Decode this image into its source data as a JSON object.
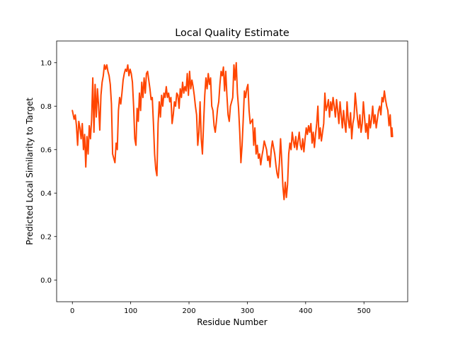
{
  "chart_data": {
    "type": "line",
    "title": "Local Quality Estimate",
    "xlabel": "Residue Number",
    "ylabel": "Predicted Local Similarity to Target",
    "xlim": [
      -27,
      575
    ],
    "ylim": [
      -0.1,
      1.1
    ],
    "x_ticks": [
      0,
      100,
      200,
      300,
      400,
      500
    ],
    "y_ticks": [
      0.0,
      0.2,
      0.4,
      0.6,
      0.8,
      1.0
    ],
    "grid": false,
    "series": [
      {
        "color": "#ff4500",
        "points": [
          [
            0,
            0.78
          ],
          [
            3,
            0.74
          ],
          [
            5,
            0.76
          ],
          [
            7,
            0.71
          ],
          [
            9,
            0.62
          ],
          [
            11,
            0.73
          ],
          [
            13,
            0.7
          ],
          [
            15,
            0.65
          ],
          [
            17,
            0.72
          ],
          [
            19,
            0.6
          ],
          [
            21,
            0.67
          ],
          [
            23,
            0.52
          ],
          [
            25,
            0.66
          ],
          [
            27,
            0.58
          ],
          [
            29,
            0.71
          ],
          [
            31,
            0.65
          ],
          [
            33,
            0.74
          ],
          [
            35,
            0.93
          ],
          [
            37,
            0.68
          ],
          [
            39,
            0.9
          ],
          [
            41,
            0.75
          ],
          [
            43,
            0.88
          ],
          [
            45,
            0.8
          ],
          [
            47,
            0.69
          ],
          [
            49,
            0.85
          ],
          [
            51,
            0.91
          ],
          [
            53,
            0.94
          ],
          [
            55,
            0.99
          ],
          [
            57,
            0.97
          ],
          [
            59,
            0.99
          ],
          [
            61,
            0.96
          ],
          [
            63,
            0.94
          ],
          [
            65,
            0.9
          ],
          [
            67,
            0.81
          ],
          [
            69,
            0.58
          ],
          [
            71,
            0.56
          ],
          [
            73,
            0.54
          ],
          [
            75,
            0.63
          ],
          [
            77,
            0.6
          ],
          [
            79,
            0.78
          ],
          [
            81,
            0.84
          ],
          [
            83,
            0.81
          ],
          [
            85,
            0.86
          ],
          [
            87,
            0.92
          ],
          [
            89,
            0.95
          ],
          [
            91,
            0.97
          ],
          [
            93,
            0.96
          ],
          [
            95,
            0.99
          ],
          [
            97,
            0.94
          ],
          [
            99,
            0.97
          ],
          [
            101,
            0.95
          ],
          [
            103,
            0.91
          ],
          [
            105,
            0.8
          ],
          [
            107,
            0.65
          ],
          [
            109,
            0.62
          ],
          [
            111,
            0.79
          ],
          [
            113,
            0.73
          ],
          [
            115,
            0.86
          ],
          [
            117,
            0.78
          ],
          [
            119,
            0.91
          ],
          [
            121,
            0.84
          ],
          [
            123,
            0.93
          ],
          [
            125,
            0.86
          ],
          [
            127,
            0.95
          ],
          [
            129,
            0.96
          ],
          [
            131,
            0.92
          ],
          [
            133,
            0.88
          ],
          [
            135,
            0.83
          ],
          [
            137,
            0.84
          ],
          [
            139,
            0.72
          ],
          [
            141,
            0.58
          ],
          [
            143,
            0.51
          ],
          [
            145,
            0.48
          ],
          [
            147,
            0.72
          ],
          [
            149,
            0.82
          ],
          [
            151,
            0.75
          ],
          [
            153,
            0.85
          ],
          [
            155,
            0.8
          ],
          [
            157,
            0.86
          ],
          [
            159,
            0.84
          ],
          [
            161,
            0.89
          ],
          [
            163,
            0.84
          ],
          [
            165,
            0.86
          ],
          [
            167,
            0.82
          ],
          [
            169,
            0.84
          ],
          [
            171,
            0.72
          ],
          [
            173,
            0.76
          ],
          [
            175,
            0.82
          ],
          [
            177,
            0.8
          ],
          [
            179,
            0.86
          ],
          [
            181,
            0.85
          ],
          [
            183,
            0.79
          ],
          [
            185,
            0.88
          ],
          [
            187,
            0.84
          ],
          [
            189,
            0.91
          ],
          [
            191,
            0.86
          ],
          [
            193,
            0.89
          ],
          [
            195,
            0.87
          ],
          [
            197,
            0.95
          ],
          [
            199,
            0.85
          ],
          [
            201,
            0.96
          ],
          [
            203,
            0.88
          ],
          [
            205,
            0.92
          ],
          [
            207,
            0.89
          ],
          [
            209,
            0.85
          ],
          [
            211,
            0.8
          ],
          [
            213,
            0.76
          ],
          [
            215,
            0.62
          ],
          [
            217,
            0.68
          ],
          [
            219,
            0.82
          ],
          [
            221,
            0.65
          ],
          [
            223,
            0.58
          ],
          [
            225,
            0.72
          ],
          [
            227,
            0.85
          ],
          [
            229,
            0.93
          ],
          [
            231,
            0.88
          ],
          [
            233,
            0.95
          ],
          [
            235,
            0.9
          ],
          [
            237,
            0.93
          ],
          [
            239,
            0.8
          ],
          [
            241,
            0.78
          ],
          [
            243,
            0.71
          ],
          [
            245,
            0.68
          ],
          [
            247,
            0.73
          ],
          [
            249,
            0.79
          ],
          [
            251,
            0.82
          ],
          [
            253,
            0.9
          ],
          [
            255,
            0.96
          ],
          [
            257,
            0.94
          ],
          [
            259,
            0.98
          ],
          [
            261,
            0.87
          ],
          [
            263,
            0.96
          ],
          [
            265,
            0.85
          ],
          [
            267,
            0.76
          ],
          [
            269,
            0.73
          ],
          [
            271,
            0.8
          ],
          [
            273,
            0.82
          ],
          [
            275,
            0.84
          ],
          [
            277,
            0.99
          ],
          [
            279,
            0.92
          ],
          [
            281,
            1.0
          ],
          [
            283,
            0.86
          ],
          [
            285,
            0.79
          ],
          [
            287,
            0.68
          ],
          [
            289,
            0.54
          ],
          [
            291,
            0.62
          ],
          [
            293,
            0.74
          ],
          [
            295,
            0.87
          ],
          [
            297,
            0.84
          ],
          [
            299,
            0.88
          ],
          [
            301,
            0.9
          ],
          [
            303,
            0.78
          ],
          [
            305,
            0.72
          ],
          [
            307,
            0.73
          ],
          [
            309,
            0.74
          ],
          [
            311,
            0.62
          ],
          [
            313,
            0.7
          ],
          [
            315,
            0.58
          ],
          [
            317,
            0.62
          ],
          [
            319,
            0.56
          ],
          [
            321,
            0.58
          ],
          [
            323,
            0.53
          ],
          [
            325,
            0.57
          ],
          [
            327,
            0.6
          ],
          [
            329,
            0.64
          ],
          [
            331,
            0.62
          ],
          [
            333,
            0.6
          ],
          [
            335,
            0.55
          ],
          [
            337,
            0.57
          ],
          [
            339,
            0.52
          ],
          [
            341,
            0.6
          ],
          [
            343,
            0.64
          ],
          [
            345,
            0.61
          ],
          [
            347,
            0.58
          ],
          [
            349,
            0.53
          ],
          [
            351,
            0.49
          ],
          [
            353,
            0.47
          ],
          [
            355,
            0.54
          ],
          [
            357,
            0.65
          ],
          [
            359,
            0.55
          ],
          [
            361,
            0.43
          ],
          [
            363,
            0.37
          ],
          [
            365,
            0.45
          ],
          [
            367,
            0.38
          ],
          [
            369,
            0.44
          ],
          [
            371,
            0.58
          ],
          [
            373,
            0.63
          ],
          [
            375,
            0.6
          ],
          [
            377,
            0.68
          ],
          [
            379,
            0.64
          ],
          [
            381,
            0.61
          ],
          [
            383,
            0.66
          ],
          [
            385,
            0.6
          ],
          [
            387,
            0.64
          ],
          [
            389,
            0.68
          ],
          [
            391,
            0.62
          ],
          [
            393,
            0.6
          ],
          [
            395,
            0.65
          ],
          [
            397,
            0.59
          ],
          [
            399,
            0.65
          ],
          [
            401,
            0.7
          ],
          [
            403,
            0.67
          ],
          [
            405,
            0.71
          ],
          [
            407,
            0.68
          ],
          [
            409,
            0.72
          ],
          [
            411,
            0.63
          ],
          [
            413,
            0.68
          ],
          [
            415,
            0.61
          ],
          [
            417,
            0.67
          ],
          [
            419,
            0.72
          ],
          [
            421,
            0.8
          ],
          [
            423,
            0.65
          ],
          [
            425,
            0.7
          ],
          [
            427,
            0.64
          ],
          [
            429,
            0.68
          ],
          [
            431,
            0.72
          ],
          [
            433,
            0.86
          ],
          [
            435,
            0.78
          ],
          [
            437,
            0.8
          ],
          [
            439,
            0.83
          ],
          [
            441,
            0.75
          ],
          [
            443,
            0.82
          ],
          [
            445,
            0.78
          ],
          [
            447,
            0.84
          ],
          [
            449,
            0.8
          ],
          [
            451,
            0.75
          ],
          [
            453,
            0.83
          ],
          [
            455,
            0.78
          ],
          [
            457,
            0.72
          ],
          [
            459,
            0.82
          ],
          [
            461,
            0.76
          ],
          [
            463,
            0.7
          ],
          [
            465,
            0.78
          ],
          [
            467,
            0.72
          ],
          [
            469,
            0.68
          ],
          [
            471,
            0.82
          ],
          [
            473,
            0.74
          ],
          [
            475,
            0.7
          ],
          [
            477,
            0.77
          ],
          [
            479,
            0.65
          ],
          [
            481,
            0.72
          ],
          [
            483,
            0.75
          ],
          [
            485,
            0.86
          ],
          [
            487,
            0.8
          ],
          [
            489,
            0.74
          ],
          [
            491,
            0.7
          ],
          [
            493,
            0.76
          ],
          [
            495,
            0.68
          ],
          [
            497,
            0.72
          ],
          [
            499,
            0.82
          ],
          [
            501,
            0.75
          ],
          [
            503,
            0.68
          ],
          [
            505,
            0.72
          ],
          [
            507,
            0.65
          ],
          [
            509,
            0.76
          ],
          [
            511,
            0.7
          ],
          [
            513,
            0.74
          ],
          [
            515,
            0.8
          ],
          [
            517,
            0.72
          ],
          [
            519,
            0.76
          ],
          [
            521,
            0.7
          ],
          [
            523,
            0.74
          ],
          [
            525,
            0.78
          ],
          [
            527,
            0.8
          ],
          [
            529,
            0.76
          ],
          [
            531,
            0.84
          ],
          [
            533,
            0.82
          ],
          [
            535,
            0.87
          ],
          [
            537,
            0.83
          ],
          [
            539,
            0.8
          ],
          [
            541,
            0.78
          ],
          [
            543,
            0.71
          ],
          [
            545,
            0.76
          ],
          [
            547,
            0.66
          ],
          [
            548,
            0.7
          ],
          [
            549,
            0.66
          ]
        ]
      }
    ]
  }
}
